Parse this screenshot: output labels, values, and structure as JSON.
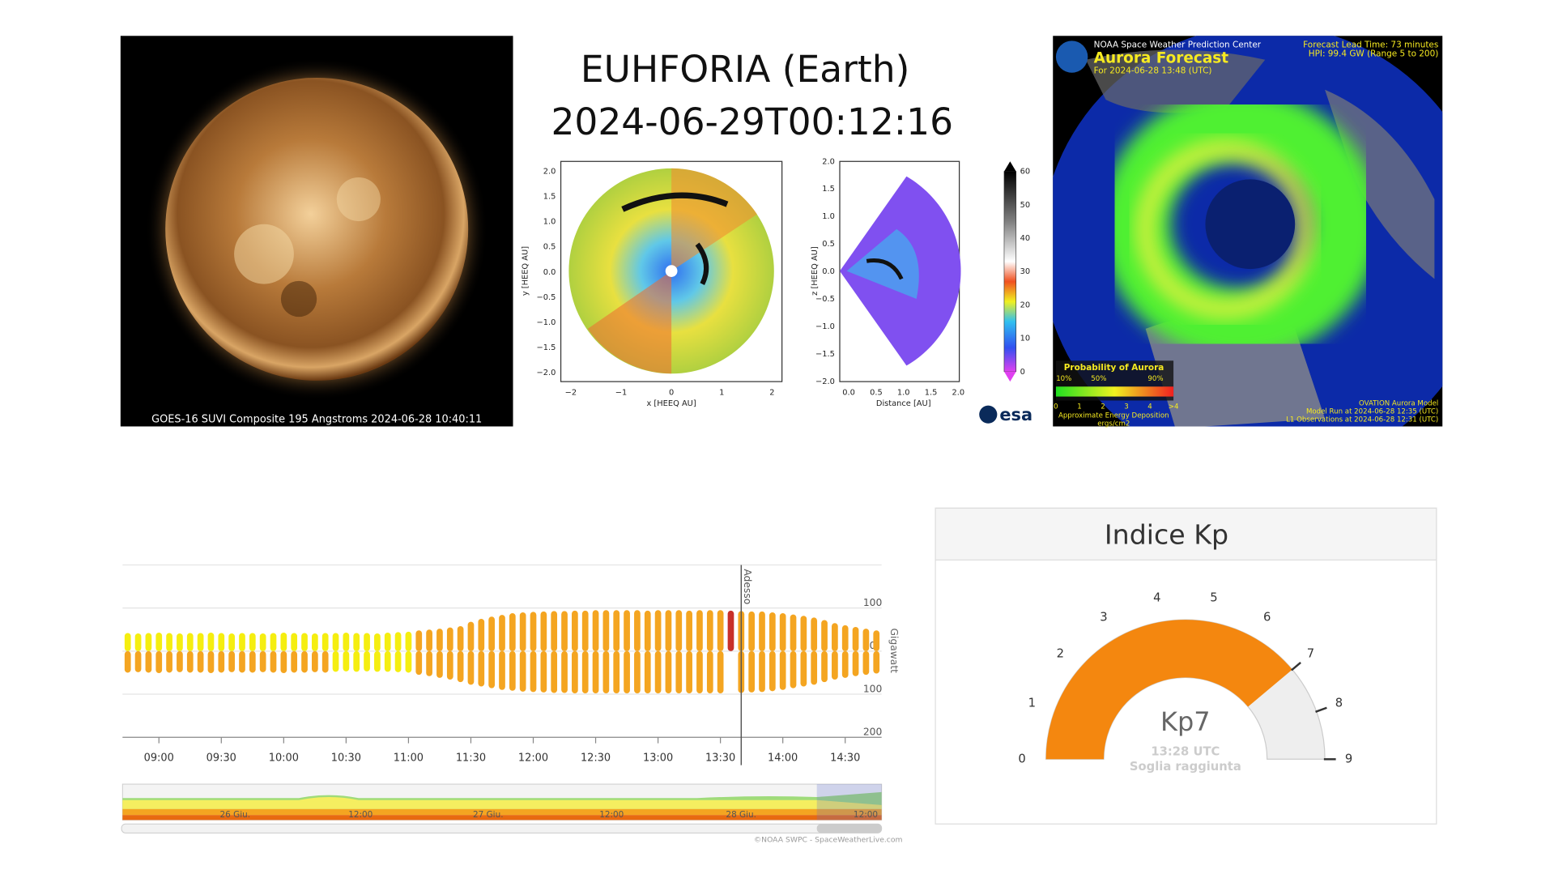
{
  "panels": {
    "sun": {
      "caption": "GOES-16 SUVI Composite 195 Angstroms 2024-06-28 10:40:11"
    },
    "euhforia": {
      "title": "EUHFORIA (Earth)",
      "time": "2024-06-29T00:12:16",
      "left_ylabel": "y [HEEQ AU]",
      "left_xlabel": "x [HEEQ AU]",
      "left_yticks": [
        "2.0",
        "1.5",
        "1.0",
        "0.5",
        "0.0",
        "−0.5",
        "−1.0",
        "−1.5",
        "−2.0"
      ],
      "left_xticks": [
        "−2",
        "−1",
        "0",
        "1",
        "2"
      ],
      "right_ylabel": "z [HEEQ AU]",
      "right_xlabel": "Distance [AU]",
      "right_yticks": [
        "2.0",
        "1.5",
        "1.0",
        "0.5",
        "0.0",
        "−0.5",
        "−1.0",
        "−1.5",
        "−2.0"
      ],
      "right_xticks": [
        "0.0",
        "0.5",
        "1.0",
        "1.5",
        "2.0"
      ],
      "colorbar_ticks": [
        "60",
        "50",
        "40",
        "30",
        "20",
        "10",
        "0"
      ],
      "logo": "esa"
    },
    "aurora": {
      "org": "NOAA Space Weather Prediction Center",
      "title": "Aurora Forecast",
      "for": "For 2024-06-28 13:48 (UTC)",
      "lead": "Forecast Lead Time:  73 minutes",
      "hpi": "HPI:  99.4 GW (Range 5 to 200)",
      "legend_title": "Probability of Aurora",
      "legend_pcts": [
        "10%",
        "50%",
        "90%"
      ],
      "legend_scale": [
        "0",
        "1",
        "2",
        "3",
        "4",
        ">4"
      ],
      "deposition": "Approximate Energy Deposition",
      "units": "ergs/cm2",
      "model": "OVATION Aurora Model",
      "run": "Model Run at 2024-06-28 12:35 (UTC)",
      "l1": "L1 Observations at 2024-06-28 12:31 (UTC)"
    }
  },
  "chart_data": [
    {
      "type": "bar",
      "y_label": "Gigawatt",
      "marker": "Adesso",
      "categories": [
        null,
        null,
        null,
        "09:00",
        null,
        null,
        null,
        null,
        null,
        "09:30",
        null,
        null,
        null,
        null,
        null,
        "10:00",
        null,
        null,
        null,
        null,
        null,
        "10:30",
        null,
        null,
        null,
        null,
        null,
        "11:00",
        null,
        null,
        null,
        null,
        null,
        "11:30",
        null,
        null,
        null,
        null,
        null,
        "12:00",
        null,
        null,
        null,
        null,
        null,
        "12:30",
        null,
        null,
        null,
        null,
        null,
        "13:00",
        null,
        null,
        null,
        null,
        null,
        "13:30",
        null,
        null,
        null,
        null,
        null,
        "14:00",
        null,
        null,
        null,
        null,
        null,
        "14:30",
        null,
        null,
        null
      ],
      "series": [
        {
          "values": [
            42,
            41,
            42,
            43,
            42,
            41,
            42,
            42,
            43,
            42,
            41,
            42,
            42,
            41,
            42,
            43,
            42,
            42,
            41,
            42,
            42,
            43,
            42,
            42,
            41,
            43,
            44,
            45,
            48,
            50,
            52,
            55,
            58,
            68,
            75,
            80,
            84,
            88,
            90,
            91,
            92,
            93,
            93,
            94,
            94,
            95,
            95,
            95,
            95,
            95,
            94,
            95,
            95,
            95,
            94,
            95,
            95,
            95,
            94,
            93,
            92,
            92,
            90,
            88,
            85,
            82,
            78,
            72,
            65,
            60,
            56,
            52,
            48
          ],
          "colors": [
            "#f5ee10",
            "#f5ee10",
            "#f5ee10",
            "#f5ee10",
            "#f5ee10",
            "#f5ee10",
            "#f5ee10",
            "#f5ee10",
            "#f5ee10",
            "#f5ee10",
            "#f5ee10",
            "#f5ee10",
            "#f5ee10",
            "#f5ee10",
            "#f5ee10",
            "#f5ee10",
            "#f5ee10",
            "#f5ee10",
            "#f5ee10",
            "#f5ee10",
            "#f5ee10",
            "#f5ee10",
            "#f5ee10",
            "#f5ee10",
            "#f5ee10",
            "#f5ee10",
            "#f5ee10",
            "#f5ee10",
            "#f4a521",
            "#f4a521",
            "#f4a521",
            "#f4a521",
            "#f4a521",
            "#f4a521",
            "#f4a521",
            "#f4a521",
            "#f4a521",
            "#f4a521",
            "#f4a521",
            "#f4a521",
            "#f4a521",
            "#f4a521",
            "#f4a521",
            "#f4a521",
            "#f4a521",
            "#f4a521",
            "#f4a521",
            "#f4a521",
            "#f4a521",
            "#f4a521",
            "#f4a521",
            "#f4a521",
            "#f4a521",
            "#f4a521",
            "#f4a521",
            "#f4a521",
            "#f4a521",
            "#f4a521",
            "#c8302a",
            "#f4a521",
            "#f4a521",
            "#f4a521",
            "#f4a521",
            "#f4a521",
            "#f4a521",
            "#f4a521",
            "#f4a521",
            "#f4a521",
            "#f4a521",
            "#f4a521",
            "#f4a521",
            "#f4a521",
            "#f4a521"
          ]
        },
        {
          "values": [
            -50,
            -49,
            -50,
            -51,
            -50,
            -49,
            -50,
            -50,
            -51,
            -50,
            -49,
            -50,
            -50,
            -49,
            -50,
            -51,
            -50,
            -50,
            -49,
            -50,
            -48,
            -47,
            -48,
            -47,
            -48,
            -48,
            -49,
            -50,
            -55,
            -58,
            -62,
            -66,
            -72,
            -78,
            -82,
            -86,
            -90,
            -92,
            -94,
            -95,
            -96,
            -97,
            -97,
            -98,
            -98,
            -98,
            -98,
            -98,
            -98,
            -98,
            -98,
            -98,
            -98,
            -98,
            -98,
            -98,
            -98,
            -98,
            null,
            -97,
            -96,
            -95,
            -93,
            -90,
            -86,
            -82,
            -78,
            -72,
            -66,
            -62,
            -58,
            -55,
            -52
          ],
          "colors": [
            "#f4a521",
            "#f4a521",
            "#f4a521",
            "#f4a521",
            "#f4a521",
            "#f4a521",
            "#f4a521",
            "#f4a521",
            "#f4a521",
            "#f4a521",
            "#f4a521",
            "#f4a521",
            "#f4a521",
            "#f4a521",
            "#f4a521",
            "#f4a521",
            "#f4a521",
            "#f4a521",
            "#f4a521",
            "#f4a521",
            "#f5ee10",
            "#f5ee10",
            "#f5ee10",
            "#f5ee10",
            "#f5ee10",
            "#f5ee10",
            "#f5ee10",
            "#f5ee10",
            "#f4a521",
            "#f4a521",
            "#f4a521",
            "#f4a521",
            "#f4a521",
            "#f4a521",
            "#f4a521",
            "#f4a521",
            "#f4a521",
            "#f4a521",
            "#f4a521",
            "#f4a521",
            "#f4a521",
            "#f4a521",
            "#f4a521",
            "#f4a521",
            "#f4a521",
            "#f4a521",
            "#f4a521",
            "#f4a521",
            "#f4a521",
            "#f4a521",
            "#f4a521",
            "#f4a521",
            "#f4a521",
            "#f4a521",
            "#f4a521",
            "#f4a521",
            "#f4a521",
            "#f4a521",
            "#f4a521",
            "#f4a521",
            "#f4a521",
            "#f4a521",
            "#f4a521",
            "#f4a521",
            "#f4a521",
            "#f4a521",
            "#f4a521",
            "#f4a521",
            "#f4a521",
            "#f4a521",
            "#f4a521",
            "#f4a521",
            "#f4a521"
          ]
        }
      ],
      "ylim": [
        -200,
        200
      ],
      "yticks": [
        100,
        0,
        {
          "value": -100,
          "label": "100"
        },
        {
          "value": -200,
          "label": "200"
        }
      ],
      "grid": true,
      "navigator_labels": [
        "26 Giu.",
        "12:00",
        "27 Giu.",
        "12:00",
        "28 Giu.",
        "12:00"
      ],
      "credit": "©NOAA SWPC - SpaceWeatherLive.com"
    },
    {
      "type": "gauge",
      "title": "Indice Kp",
      "ylim": [
        0,
        9
      ],
      "yticks": [
        0,
        1,
        2,
        3,
        4,
        5,
        6,
        7,
        8,
        9
      ],
      "value": 7,
      "value_label": "Kp7",
      "subtitle": "13:28 UTC",
      "note": "Soglia raggiunta",
      "color": "#f4870f",
      "track_color": "#eeeeee"
    }
  ]
}
